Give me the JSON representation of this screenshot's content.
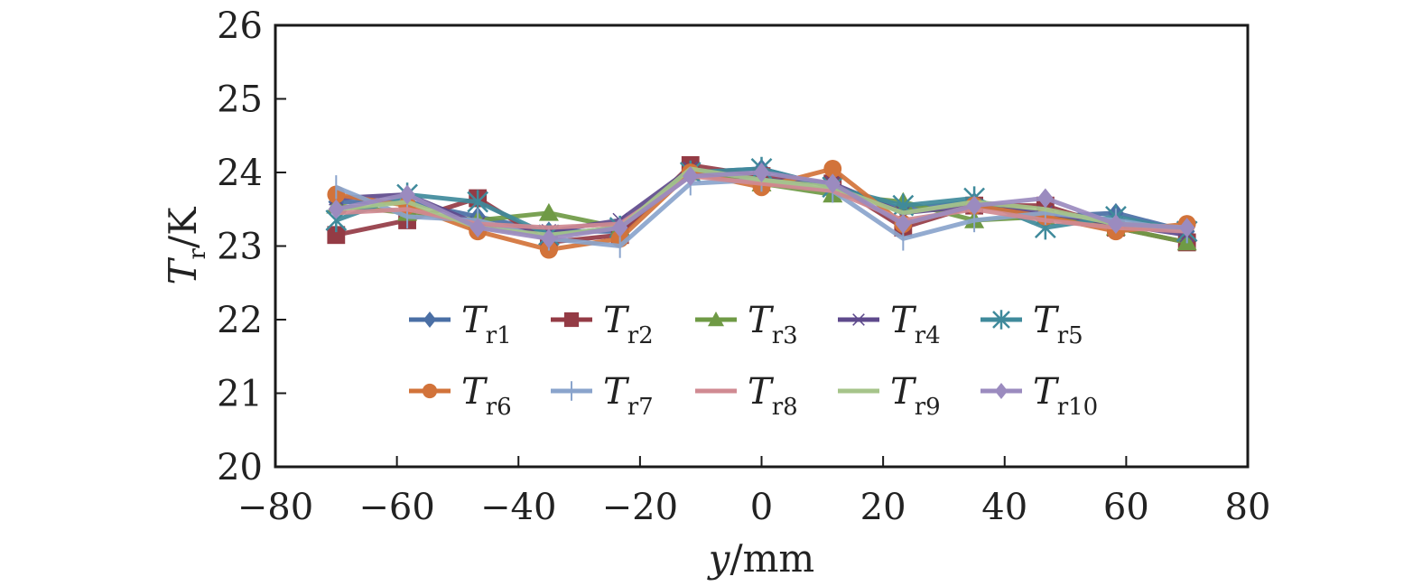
{
  "chart_data": {
    "type": "line",
    "title": "",
    "xlabel": "y/mm",
    "ylabel": "T_r/K",
    "xlim": [
      -80,
      80
    ],
    "ylim": [
      20,
      26
    ],
    "xticks": [
      -80,
      -60,
      -40,
      -20,
      0,
      20,
      40,
      60,
      80
    ],
    "yticks": [
      20,
      21,
      22,
      23,
      24,
      25,
      26
    ],
    "xtick_labels": [
      "−80",
      "−60",
      "−40",
      "−20",
      "0",
      "20",
      "40",
      "60",
      "80"
    ],
    "ytick_labels": [
      "20",
      "21",
      "22",
      "23",
      "24",
      "25",
      "26"
    ],
    "grid": false,
    "legend_position": "lower-center, inside, 2 rows x 5 columns",
    "x": [
      -70,
      -58.3,
      -46.7,
      -35,
      -23.3,
      -11.7,
      0,
      11.7,
      23.3,
      35,
      46.7,
      58.3,
      70
    ],
    "series": [
      {
        "name": "Tr1",
        "label_main": "T",
        "label_sub": "r1",
        "color": "#4a6fa5",
        "marker": "diamond",
        "values": [
          23.6,
          23.6,
          23.4,
          23.2,
          23.2,
          24.0,
          24.05,
          23.8,
          23.5,
          23.6,
          23.4,
          23.45,
          23.2
        ]
      },
      {
        "name": "Tr2",
        "label_main": "T",
        "label_sub": "r2",
        "color": "#943b45",
        "marker": "square",
        "values": [
          23.15,
          23.35,
          23.65,
          23.05,
          23.15,
          24.1,
          23.95,
          23.85,
          23.25,
          23.55,
          23.55,
          23.25,
          23.05
        ]
      },
      {
        "name": "Tr3",
        "label_main": "T",
        "label_sub": "r3",
        "color": "#6f9a45",
        "marker": "triangle",
        "values": [
          23.55,
          23.45,
          23.35,
          23.45,
          23.25,
          24.0,
          23.85,
          23.7,
          23.6,
          23.35,
          23.4,
          23.25,
          23.05
        ]
      },
      {
        "name": "Tr4",
        "label_main": "T",
        "label_sub": "r4",
        "color": "#5e4a8c",
        "marker": "x",
        "values": [
          23.65,
          23.7,
          23.3,
          23.2,
          23.35,
          24.05,
          23.9,
          23.85,
          23.45,
          23.55,
          23.45,
          23.3,
          23.15
        ]
      },
      {
        "name": "Tr5",
        "label_main": "T",
        "label_sub": "r5",
        "color": "#3f8a9b",
        "marker": "star",
        "values": [
          23.35,
          23.7,
          23.6,
          23.15,
          23.25,
          24.0,
          24.05,
          23.8,
          23.55,
          23.65,
          23.25,
          23.4,
          23.2
        ]
      },
      {
        "name": "Tr6",
        "label_main": "T",
        "label_sub": "r6",
        "color": "#d2733a",
        "marker": "circle",
        "values": [
          23.7,
          23.55,
          23.2,
          22.95,
          23.1,
          24.0,
          23.8,
          24.05,
          23.3,
          23.55,
          23.4,
          23.2,
          23.3
        ]
      },
      {
        "name": "Tr7",
        "label_main": "T",
        "label_sub": "r7",
        "color": "#8aa4cc",
        "marker": "plus",
        "values": [
          23.8,
          23.4,
          23.35,
          23.1,
          23.0,
          23.85,
          23.9,
          23.75,
          23.1,
          23.35,
          23.45,
          23.35,
          23.2
        ]
      },
      {
        "name": "Tr8",
        "label_main": "T",
        "label_sub": "r8",
        "color": "#d08a92",
        "marker": "none",
        "values": [
          23.45,
          23.5,
          23.3,
          23.25,
          23.3,
          23.95,
          23.85,
          23.75,
          23.35,
          23.5,
          23.35,
          23.25,
          23.2
        ]
      },
      {
        "name": "Tr9",
        "label_main": "T",
        "label_sub": "r9",
        "color": "#a6c48a",
        "marker": "none",
        "values": [
          23.5,
          23.6,
          23.25,
          23.15,
          23.25,
          24.05,
          23.9,
          23.8,
          23.45,
          23.6,
          23.5,
          23.3,
          23.25
        ]
      },
      {
        "name": "Tr10",
        "label_main": "T",
        "label_sub": "r10",
        "color": "#9b8bbf",
        "marker": "diamond",
        "values": [
          23.5,
          23.7,
          23.25,
          23.1,
          23.25,
          23.95,
          24.0,
          23.85,
          23.3,
          23.55,
          23.65,
          23.3,
          23.25
        ]
      }
    ]
  },
  "labels": {
    "ylabel_main": "T",
    "ylabel_sub": "r",
    "ylabel_unit": "/K",
    "xlabel_main": "y",
    "xlabel_unit": "/mm"
  }
}
